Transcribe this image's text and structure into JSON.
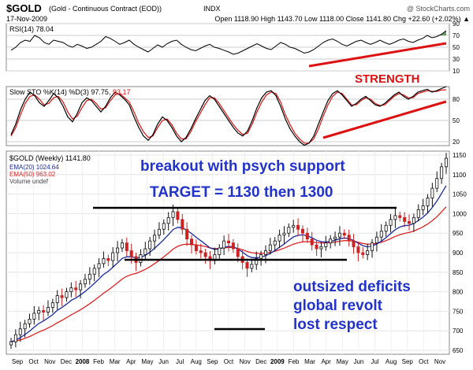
{
  "header": {
    "symbol": "$GOLD",
    "name": "(Gold - Continuous Contract (EOD))",
    "exchange": "INDX",
    "watermark": "@ StockCharts.com",
    "date": "17-Nov-2009",
    "quote": "Open 1118.90  High 1143.70  Low 1118.00  Close 1141.80  Chg +22.60 (+2.02%) ▲"
  },
  "annotations": {
    "strength": "STRENGTH",
    "headline_1": "breakout with psych support",
    "headline_2": "TARGET = 1130 then 1300",
    "reason_1": "outsized deficits",
    "reason_2": "global revolt",
    "reason_3": "lost respect"
  },
  "colors": {
    "accent_blue": "#2233cc",
    "accent_red": "#dd1111",
    "up_candle": "#111111",
    "down_candle": "#cc2222",
    "ema20": "#1a2aa0",
    "ema50": "#dd2222",
    "rsi_fill": "#4a8a4a",
    "grid": "#cccccc"
  },
  "chart_data": [
    {
      "type": "line",
      "panel": "rsi",
      "series": [
        {
          "name": "RSI(14)",
          "last_label": "78.04",
          "values": [
            45,
            50,
            58,
            62,
            60,
            70,
            66,
            58,
            55,
            62,
            60,
            58,
            53,
            50,
            55,
            52,
            48,
            50,
            55,
            60,
            68,
            65,
            60,
            55,
            58,
            62,
            55,
            50,
            46,
            42,
            48,
            54,
            50,
            56,
            60,
            62,
            55,
            50,
            46,
            44,
            48,
            52,
            55,
            50,
            48,
            45,
            42,
            38,
            40,
            44,
            48,
            52,
            56,
            52,
            48,
            46,
            52,
            58,
            55,
            50,
            48,
            44,
            40,
            42,
            46,
            52,
            58,
            62,
            64,
            60,
            55,
            52,
            56,
            60,
            62,
            58,
            55,
            58,
            62,
            58,
            55,
            58,
            62,
            64,
            60,
            58,
            62,
            65,
            70,
            66,
            68,
            72,
            78
          ]
        }
      ],
      "ylim": [
        10,
        90
      ],
      "gridlines": [
        10,
        30,
        50,
        70,
        90
      ],
      "grid": true
    },
    {
      "type": "line",
      "panel": "slow_sto",
      "legend": [
        "Slow STO %K(14)",
        "%D(3)"
      ],
      "series": [
        {
          "name": "%K(14)",
          "last_label": "97.75",
          "values": [
            30,
            45,
            65,
            80,
            90,
            85,
            75,
            70,
            78,
            88,
            82,
            70,
            55,
            48,
            60,
            75,
            82,
            78,
            70,
            62,
            70,
            82,
            90,
            86,
            80,
            72,
            55,
            40,
            28,
            22,
            30,
            45,
            55,
            50,
            40,
            28,
            20,
            26,
            38,
            52,
            65,
            78,
            85,
            80,
            70,
            60,
            50,
            40,
            32,
            28,
            35,
            50,
            68,
            82,
            90,
            92,
            85,
            70,
            52,
            38,
            28,
            20,
            15,
            18,
            28,
            45,
            62,
            78,
            88,
            92,
            86,
            78,
            70,
            74,
            80,
            84,
            78,
            72,
            70,
            74,
            80,
            86,
            90,
            84,
            80,
            84,
            90,
            92,
            94,
            90,
            92,
            95,
            97.75
          ]
        },
        {
          "name": "%D(3)",
          "last_label": "93.17",
          "values": [
            28,
            40,
            58,
            74,
            84,
            86,
            80,
            72,
            74,
            82,
            84,
            76,
            62,
            52,
            56,
            68,
            78,
            80,
            74,
            66,
            68,
            78,
            86,
            88,
            82,
            76,
            62,
            46,
            34,
            26,
            28,
            40,
            50,
            52,
            44,
            32,
            24,
            24,
            34,
            48,
            60,
            72,
            82,
            82,
            74,
            64,
            54,
            44,
            36,
            30,
            32,
            45,
            62,
            76,
            86,
            90,
            88,
            76,
            58,
            44,
            32,
            24,
            18,
            18,
            24,
            38,
            56,
            72,
            84,
            90,
            88,
            80,
            72,
            72,
            78,
            82,
            80,
            74,
            71,
            72,
            78,
            84,
            88,
            86,
            82,
            82,
            88,
            90,
            92,
            91,
            91,
            93,
            93.17
          ]
        }
      ],
      "ylim": [
        20,
        80
      ],
      "gridlines": [
        20,
        50,
        80
      ],
      "grid": true
    },
    {
      "type": "candlestick",
      "panel": "price",
      "symbol_label": "$GOLD (Weekly) 1141.80",
      "legend": [
        "EMA(20) 1024.64",
        "EMA(50) 963.02",
        "Volume undef"
      ],
      "x_ticks": [
        "Sep",
        "Oct",
        "Nov",
        "Dec",
        "2008",
        "Feb",
        "Mar",
        "Apr",
        "May",
        "Jun",
        "Jul",
        "Aug",
        "Sep",
        "Oct",
        "Nov",
        "Dec",
        "2009",
        "Feb",
        "Mar",
        "Apr",
        "May",
        "Jun",
        "Jul",
        "Aug",
        "Sep",
        "Oct",
        "Nov"
      ],
      "y_ticks": [
        650,
        700,
        750,
        800,
        850,
        900,
        950,
        1000,
        1050,
        1100,
        1150
      ],
      "ylim": [
        640,
        1160
      ],
      "series": [
        {
          "name": "Close",
          "values": [
            672,
            690,
            705,
            718,
            730,
            745,
            752,
            748,
            760,
            772,
            790,
            785,
            800,
            810,
            805,
            820,
            832,
            845,
            860,
            872,
            885,
            880,
            900,
            912,
            925,
            905,
            890,
            875,
            895,
            910,
            930,
            945,
            960,
            975,
            990,
            1005,
            985,
            960,
            935,
            920,
            905,
            900,
            890,
            880,
            895,
            912,
            930,
            925,
            910,
            890,
            875,
            860,
            870,
            885,
            895,
            905,
            920,
            930,
            945,
            950,
            965,
            970,
            960,
            950,
            935,
            920,
            910,
            915,
            925,
            935,
            940,
            950,
            945,
            930,
            915,
            900,
            895,
            905,
            925,
            940,
            955,
            970,
            985,
            995,
            990,
            980,
            975,
            990,
            1010,
            1020,
            1040,
            1065,
            1090,
            1120,
            1141.8
          ]
        }
      ],
      "grid": true
    }
  ]
}
